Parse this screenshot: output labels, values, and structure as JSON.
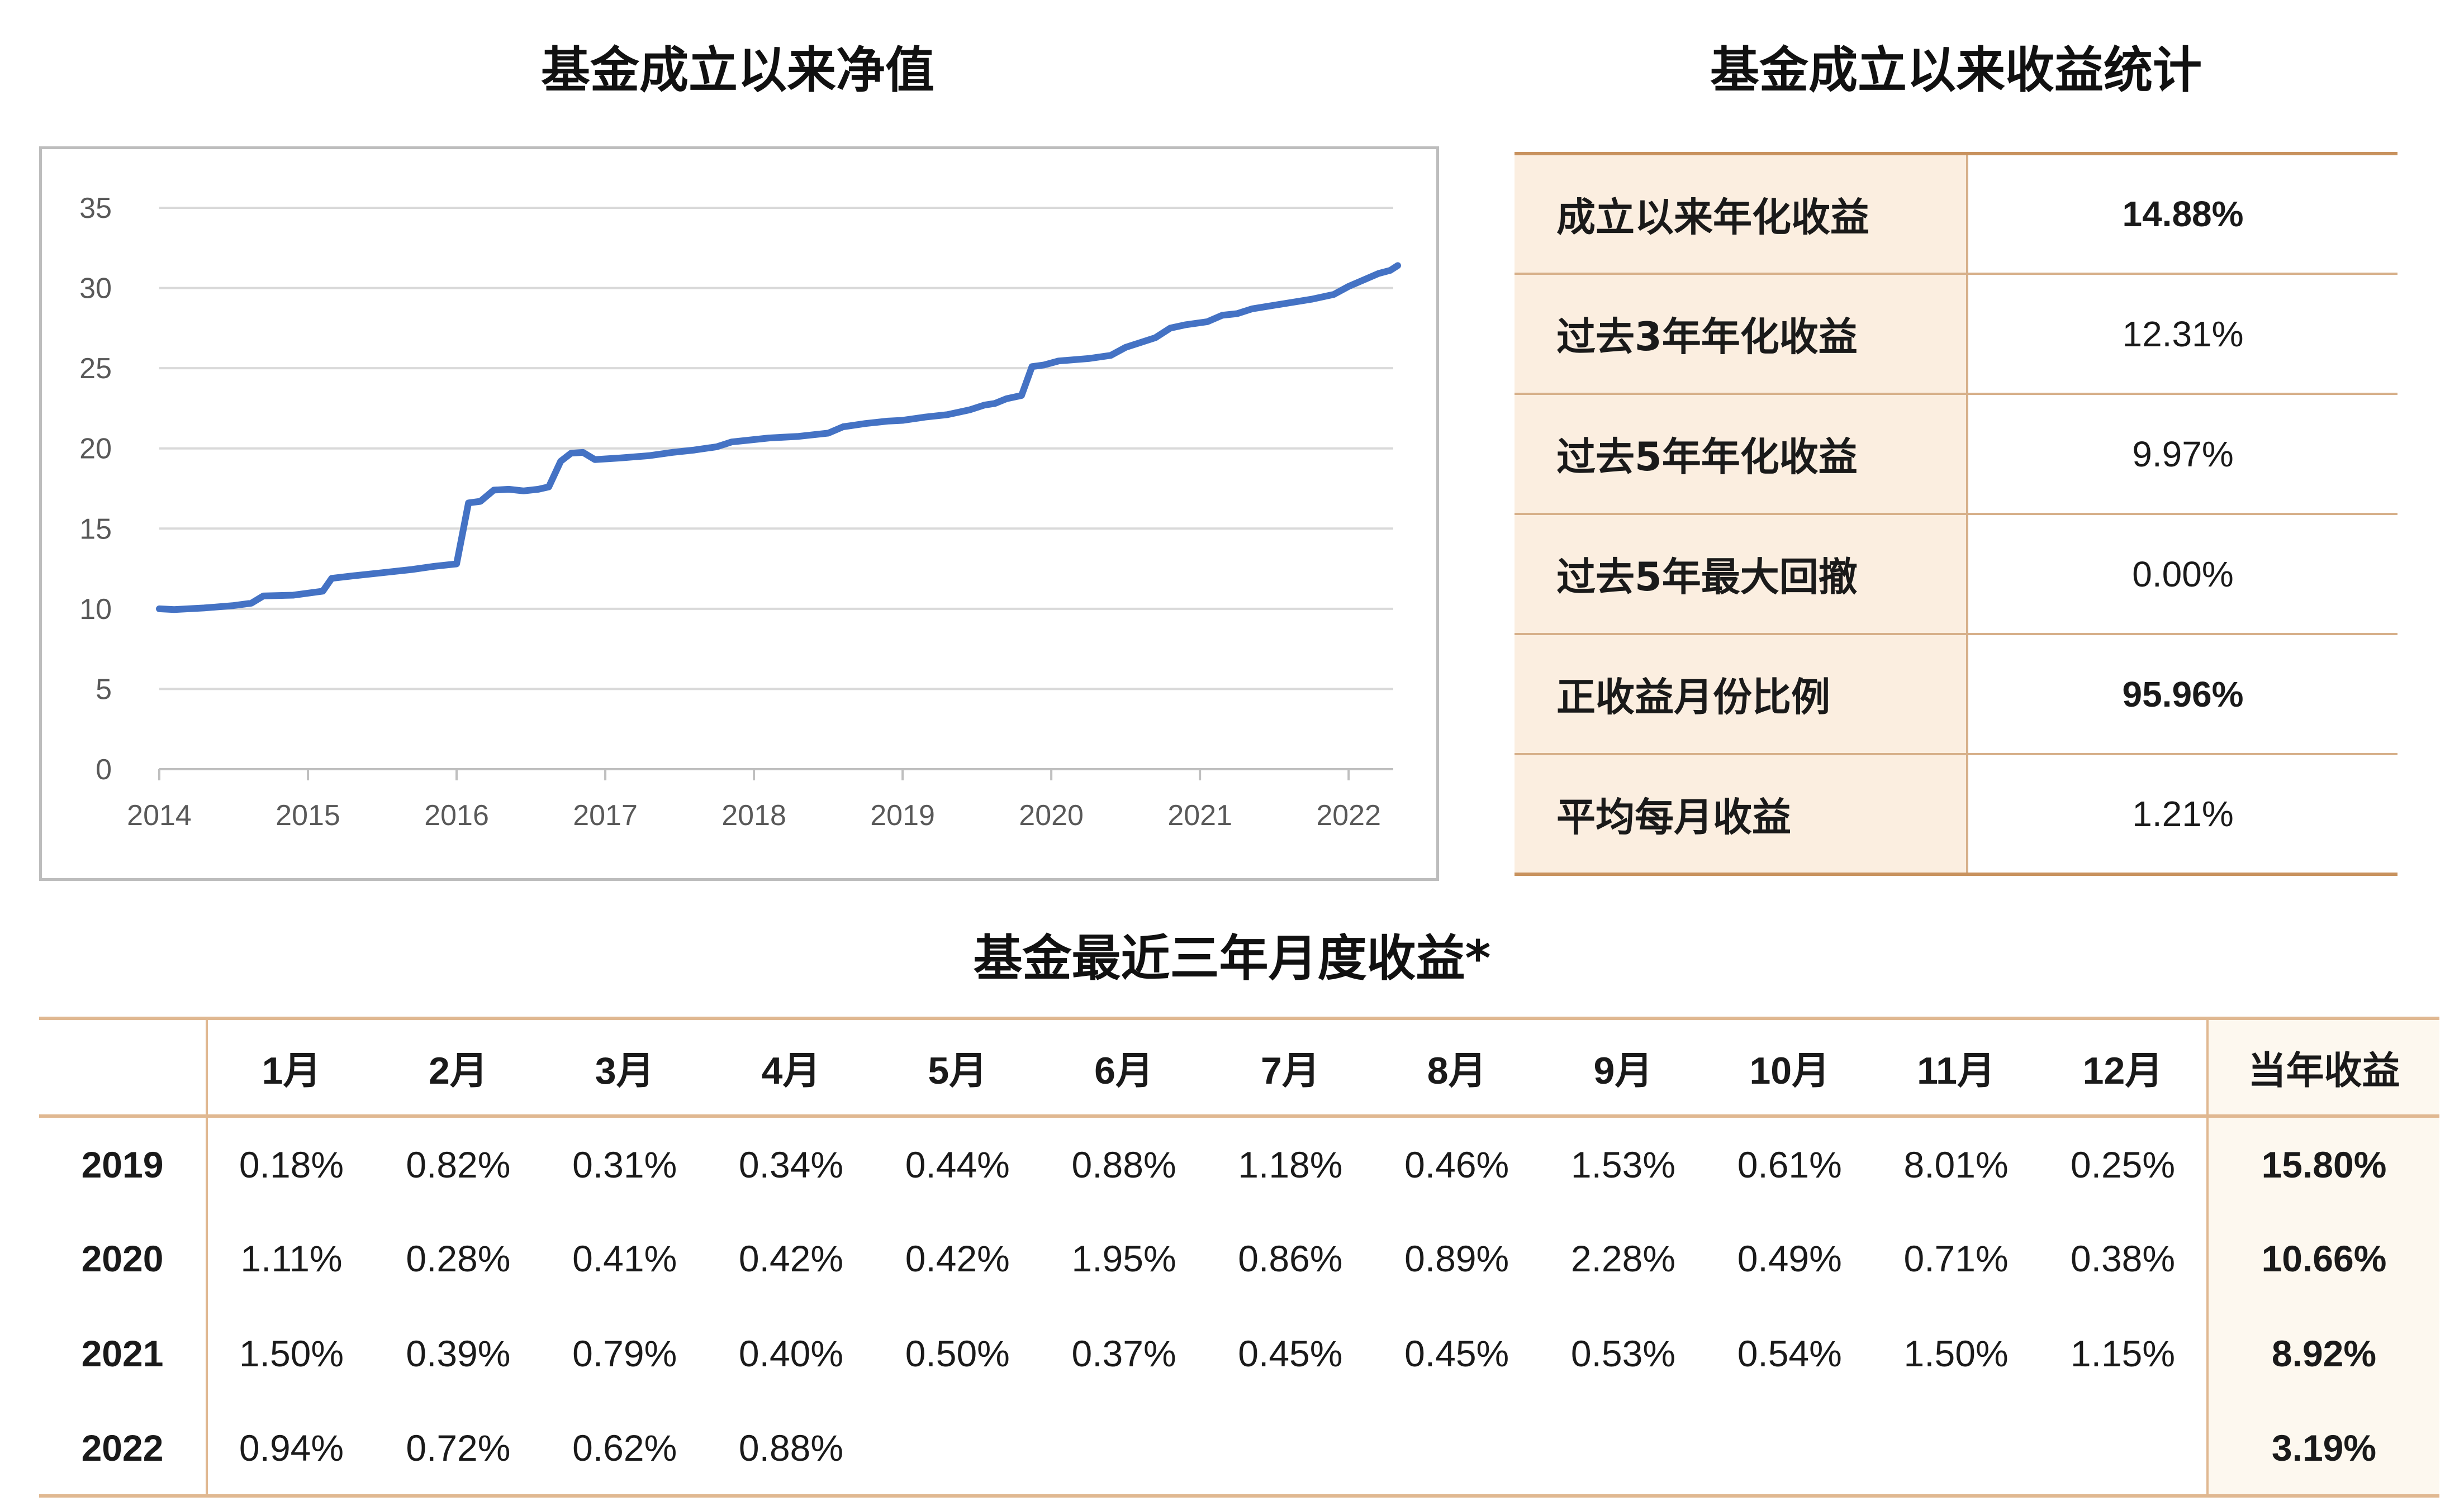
{
  "chart_title": "基金成立以来净值",
  "stats_title": "基金成立以来收益统计",
  "monthly_title": "基金最近三年月度收益*",
  "chart_data": {
    "type": "line",
    "title": "基金成立以来净值",
    "xlabel": "",
    "ylabel": "",
    "ylim": [
      0,
      35
    ],
    "xlim": [
      2014.0,
      2022.3
    ],
    "yticks": [
      "0",
      "5",
      "10",
      "15",
      "20",
      "25",
      "30",
      "35"
    ],
    "xticks": [
      "2014",
      "2015",
      "2016",
      "2017",
      "2018",
      "2019",
      "2020",
      "2021",
      "2022"
    ],
    "grid": true,
    "legend": "none",
    "color": "#4472c4",
    "series": [
      {
        "points": [
          [
            2014.0,
            10.0
          ],
          [
            2014.1,
            9.95
          ],
          [
            2014.3,
            10.05
          ],
          [
            2014.5,
            10.2
          ],
          [
            2014.62,
            10.35
          ],
          [
            2014.7,
            10.8
          ],
          [
            2014.9,
            10.85
          ],
          [
            2015.1,
            11.1
          ],
          [
            2015.16,
            11.9
          ],
          [
            2015.3,
            12.05
          ],
          [
            2015.5,
            12.25
          ],
          [
            2015.7,
            12.45
          ],
          [
            2015.85,
            12.65
          ],
          [
            2016.0,
            12.8
          ],
          [
            2016.08,
            16.6
          ],
          [
            2016.16,
            16.7
          ],
          [
            2016.25,
            17.4
          ],
          [
            2016.35,
            17.45
          ],
          [
            2016.45,
            17.35
          ],
          [
            2016.55,
            17.45
          ],
          [
            2016.62,
            17.6
          ],
          [
            2016.7,
            19.2
          ],
          [
            2016.77,
            19.7
          ],
          [
            2016.85,
            19.75
          ],
          [
            2016.93,
            19.3
          ],
          [
            2017.1,
            19.4
          ],
          [
            2017.3,
            19.55
          ],
          [
            2017.45,
            19.75
          ],
          [
            2017.6,
            19.9
          ],
          [
            2017.75,
            20.1
          ],
          [
            2017.85,
            20.4
          ],
          [
            2017.95,
            20.5
          ],
          [
            2018.1,
            20.65
          ],
          [
            2018.3,
            20.75
          ],
          [
            2018.5,
            20.95
          ],
          [
            2018.6,
            21.35
          ],
          [
            2018.75,
            21.55
          ],
          [
            2018.9,
            21.7
          ],
          [
            2019.0,
            21.75
          ],
          [
            2019.15,
            21.95
          ],
          [
            2019.3,
            22.1
          ],
          [
            2019.45,
            22.4
          ],
          [
            2019.55,
            22.7
          ],
          [
            2019.62,
            22.8
          ],
          [
            2019.7,
            23.1
          ],
          [
            2019.8,
            23.3
          ],
          [
            2019.87,
            25.1
          ],
          [
            2019.95,
            25.2
          ],
          [
            2020.05,
            25.45
          ],
          [
            2020.25,
            25.6
          ],
          [
            2020.4,
            25.8
          ],
          [
            2020.5,
            26.3
          ],
          [
            2020.6,
            26.6
          ],
          [
            2020.7,
            26.9
          ],
          [
            2020.8,
            27.5
          ],
          [
            2020.9,
            27.7
          ],
          [
            2021.05,
            27.9
          ],
          [
            2021.15,
            28.3
          ],
          [
            2021.25,
            28.4
          ],
          [
            2021.35,
            28.7
          ],
          [
            2021.55,
            29.0
          ],
          [
            2021.75,
            29.3
          ],
          [
            2021.9,
            29.6
          ],
          [
            2022.0,
            30.1
          ],
          [
            2022.1,
            30.5
          ],
          [
            2022.2,
            30.9
          ],
          [
            2022.28,
            31.1
          ],
          [
            2022.33,
            31.4
          ]
        ]
      }
    ]
  },
  "stats": [
    {
      "label": "成立以来年化收益",
      "value": "14.88%",
      "bold": true
    },
    {
      "label": "过去3年年化收益",
      "value": "12.31%",
      "bold": false
    },
    {
      "label": "过去5年年化收益",
      "value": "9.97%",
      "bold": false
    },
    {
      "label": "过去5年最大回撤",
      "value": "0.00%",
      "bold": false
    },
    {
      "label": "正收益月份比例",
      "value": "95.96%",
      "bold": true
    },
    {
      "label": "平均每月收益",
      "value": "1.21%",
      "bold": false
    }
  ],
  "monthly": {
    "headers": [
      "",
      "1月",
      "2月",
      "3月",
      "4月",
      "5月",
      "6月",
      "7月",
      "8月",
      "9月",
      "10月",
      "11月",
      "12月",
      "当年收益"
    ],
    "rows": [
      {
        "year": "2019",
        "values": [
          "0.18%",
          "0.82%",
          "0.31%",
          "0.34%",
          "0.44%",
          "0.88%",
          "1.18%",
          "0.46%",
          "1.53%",
          "0.61%",
          "8.01%",
          "0.25%"
        ],
        "total": "15.80%"
      },
      {
        "year": "2020",
        "values": [
          "1.11%",
          "0.28%",
          "0.41%",
          "0.42%",
          "0.42%",
          "1.95%",
          "0.86%",
          "0.89%",
          "2.28%",
          "0.49%",
          "0.71%",
          "0.38%"
        ],
        "total": "10.66%"
      },
      {
        "year": "2021",
        "values": [
          "1.50%",
          "0.39%",
          "0.79%",
          "0.40%",
          "0.50%",
          "0.37%",
          "0.45%",
          "0.45%",
          "0.53%",
          "0.54%",
          "1.50%",
          "1.15%"
        ],
        "total": "8.92%"
      },
      {
        "year": "2022",
        "values": [
          "0.94%",
          "0.72%",
          "0.62%",
          "0.88%",
          "",
          "",
          "",
          "",
          "",
          "",
          "",
          ""
        ],
        "total": "3.19%"
      }
    ]
  }
}
